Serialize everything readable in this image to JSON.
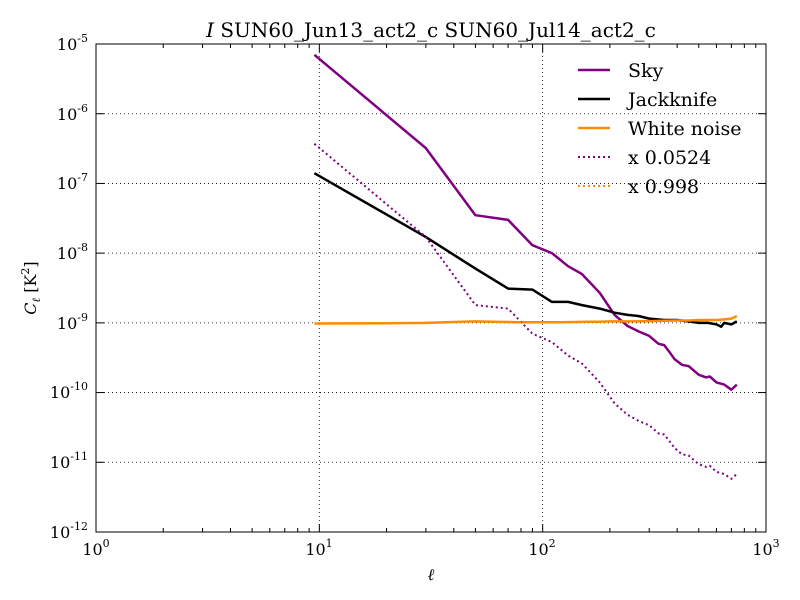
{
  "chart_data": {
    "type": "line",
    "title_italic": "I",
    "title": "SUN60_Jun13_act2_c SUN60_Jul14_act2_c",
    "xlabel": "ℓ",
    "ylabel": "C",
    "ylabel_sub": "ℓ",
    "ylabel_unit": "[K",
    "ylabel_unit_exp": "2",
    "ylabel_unit_close": "]",
    "xscale": "log",
    "yscale": "log",
    "xlim": [
      1,
      1000
    ],
    "ylim": [
      1e-12,
      1e-05
    ],
    "grid": true,
    "legend_position": "top-right",
    "x_ticks": [
      {
        "base": "10",
        "exp": "0"
      },
      {
        "base": "10",
        "exp": "1"
      },
      {
        "base": "10",
        "exp": "2"
      },
      {
        "base": "10",
        "exp": "3"
      }
    ],
    "y_ticks": [
      {
        "base": "10",
        "exp": "-12"
      },
      {
        "base": "10",
        "exp": "-11"
      },
      {
        "base": "10",
        "exp": "-10"
      },
      {
        "base": "10",
        "exp": "-9"
      },
      {
        "base": "10",
        "exp": "-8"
      },
      {
        "base": "10",
        "exp": "-7"
      },
      {
        "base": "10",
        "exp": "-6"
      },
      {
        "base": "10",
        "exp": "-5"
      }
    ],
    "series": [
      {
        "name": "Sky",
        "color": "#800080",
        "style": "solid",
        "x": [
          9.5,
          30,
          50,
          70,
          90,
          110,
          130,
          150,
          180,
          210,
          240,
          270,
          300,
          330,
          350,
          370,
          390,
          420,
          450,
          500,
          540,
          560,
          600,
          650,
          700,
          740
        ],
        "y": [
          7e-06,
          3.2e-07,
          3.5e-08,
          3e-08,
          1.3e-08,
          1e-08,
          6.5e-09,
          5e-09,
          2.7e-09,
          1.3e-09,
          9e-10,
          7.5e-10,
          6.5e-10,
          5e-10,
          4.8e-10,
          3.8e-10,
          3e-10,
          2.5e-10,
          2.4e-10,
          1.8e-10,
          1.65e-10,
          1.7e-10,
          1.4e-10,
          1.3e-10,
          1.1e-10,
          1.3e-10
        ]
      },
      {
        "name": "Jackknife",
        "color": "#000000",
        "style": "solid",
        "x": [
          9.5,
          30,
          50,
          70,
          90,
          110,
          130,
          150,
          180,
          210,
          240,
          270,
          300,
          350,
          400,
          450,
          500,
          550,
          600,
          630,
          650,
          700,
          740
        ],
        "y": [
          1.4e-07,
          1.7e-08,
          6e-09,
          3.1e-09,
          3e-09,
          2e-09,
          2e-09,
          1.8e-09,
          1.6e-09,
          1.4e-09,
          1.3e-09,
          1.25e-09,
          1.15e-09,
          1.1e-09,
          1.1e-09,
          1.05e-09,
          1e-09,
          1e-09,
          9.5e-10,
          8.8e-10,
          1e-09,
          9.5e-10,
          1.05e-09
        ]
      },
      {
        "name": "White noise",
        "color": "#FF8C00",
        "style": "solid",
        "x": [
          9.5,
          20,
          30,
          40,
          50,
          60,
          70,
          80,
          90,
          100,
          120,
          140,
          160,
          180,
          200,
          250,
          300,
          350,
          400,
          450,
          500,
          550,
          600,
          650,
          700,
          740
        ],
        "y": [
          9.8e-10,
          9.9e-10,
          1e-09,
          1.03e-09,
          1.05e-09,
          1.04e-09,
          1.03e-09,
          1.02e-09,
          1.02e-09,
          1.02e-09,
          1.02e-09,
          1.03e-09,
          1.04e-09,
          1.04e-09,
          1.05e-09,
          1.05e-09,
          1.06e-09,
          1.07e-09,
          1.08e-09,
          1.08e-09,
          1.1e-09,
          1.1e-09,
          1.1e-09,
          1.12e-09,
          1.15e-09,
          1.25e-09
        ]
      },
      {
        "name": "x 0.0524",
        "color": "#800080",
        "style": "dotted",
        "x": [
          9.5,
          30,
          50,
          70,
          90,
          110,
          130,
          150,
          180,
          210,
          240,
          270,
          300,
          330,
          350,
          370,
          390,
          420,
          450,
          500,
          540,
          560,
          600,
          650,
          700,
          740
        ],
        "y": [
          3.7e-07,
          1.7e-08,
          1.8e-09,
          1.6e-09,
          7e-10,
          5.3e-10,
          3.4e-10,
          2.6e-10,
          1.4e-10,
          7e-11,
          4.8e-11,
          3.9e-11,
          3.4e-11,
          2.6e-11,
          2.5e-11,
          2e-11,
          1.6e-11,
          1.3e-11,
          1.25e-11,
          9.4e-12,
          8.6e-12,
          8.9e-12,
          7.3e-12,
          6.8e-12,
          5.8e-12,
          6.8e-12
        ]
      },
      {
        "name": "x 0.998",
        "color": "#FF8C00",
        "style": "dotted",
        "x": [
          9.5,
          20,
          30,
          40,
          50,
          60,
          70,
          80,
          90,
          100,
          120,
          140,
          160,
          180,
          200,
          250,
          300,
          350,
          400,
          450,
          500,
          550,
          600,
          650,
          700,
          740
        ],
        "y": [
          9.78e-10,
          9.88e-10,
          9.98e-10,
          1.028e-09,
          1.048e-09,
          1.038e-09,
          1.028e-09,
          1.018e-09,
          1.018e-09,
          1.018e-09,
          1.018e-09,
          1.028e-09,
          1.038e-09,
          1.038e-09,
          1.048e-09,
          1.048e-09,
          1.058e-09,
          1.068e-09,
          1.078e-09,
          1.078e-09,
          1.098e-09,
          1.098e-09,
          1.098e-09,
          1.118e-09,
          1.148e-09,
          1.248e-09
        ]
      }
    ]
  }
}
